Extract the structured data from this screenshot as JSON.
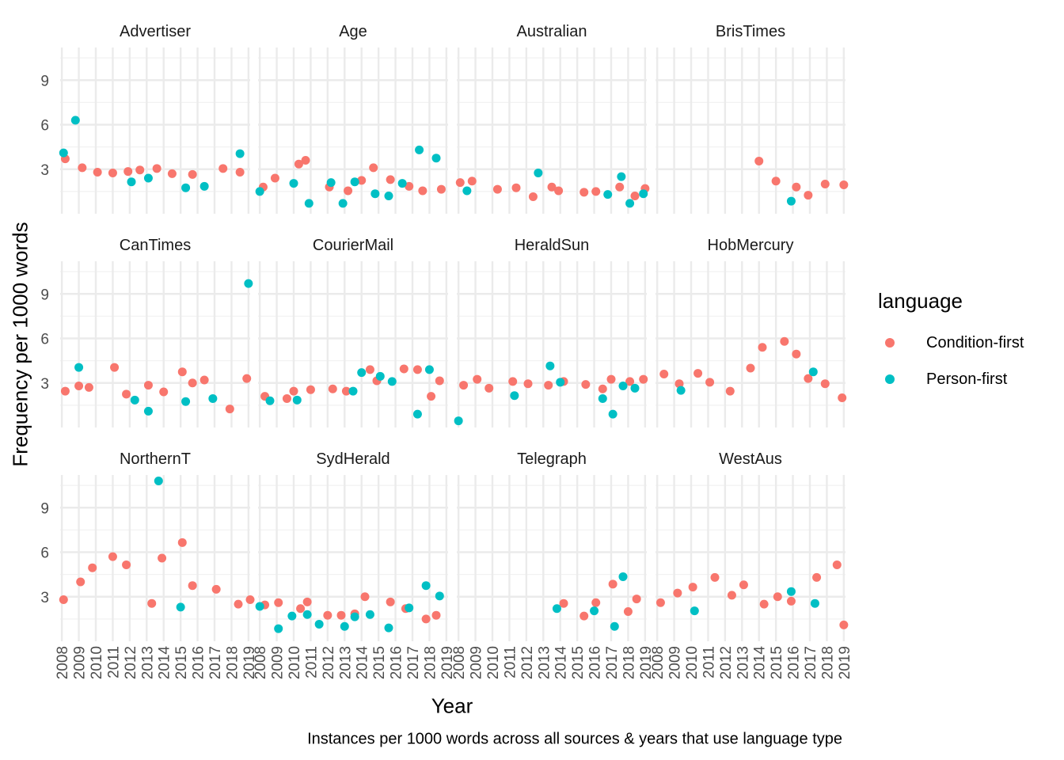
{
  "chart_data": {
    "type": "scatter",
    "xlabel": "Year",
    "ylabel": "Frequency per 1000 words",
    "caption": "Instances per 1000 words across all sources & years that use language type",
    "x_ticks": [
      "2008",
      "2009",
      "2010",
      "2011",
      "2012",
      "2013",
      "2014",
      "2015",
      "2016",
      "2017",
      "2018",
      "2019"
    ],
    "y_ticks": [
      3,
      6,
      9
    ],
    "xlim": [
      2007.9,
      2019.1
    ],
    "ylim": [
      0,
      11.2
    ],
    "grid": true,
    "legend": {
      "title": "language",
      "position": "right",
      "items": [
        {
          "label": "Condition-first",
          "color": "#F8766D"
        },
        {
          "label": "Person-first",
          "color": "#00BFC4"
        }
      ]
    },
    "facets": [
      {
        "title": "Advertiser",
        "condition_first": [
          [
            2008.2,
            3.7
          ],
          [
            2009.2,
            3.1
          ],
          [
            2010.1,
            2.8
          ],
          [
            2011.0,
            2.75
          ],
          [
            2011.9,
            2.85
          ],
          [
            2012.6,
            2.95
          ],
          [
            2013.6,
            3.05
          ],
          [
            2014.5,
            2.7
          ],
          [
            2015.7,
            2.65
          ],
          [
            2017.5,
            3.05
          ],
          [
            2018.5,
            2.8
          ]
        ],
        "person_first": [
          [
            2008.1,
            4.1
          ],
          [
            2008.8,
            6.3
          ],
          [
            2012.1,
            2.15
          ],
          [
            2013.1,
            2.4
          ],
          [
            2015.3,
            1.75
          ],
          [
            2016.4,
            1.85
          ],
          [
            2018.5,
            4.05
          ]
        ]
      },
      {
        "title": "Age",
        "condition_first": [
          [
            2008.2,
            1.8
          ],
          [
            2008.9,
            2.4
          ],
          [
            2010.3,
            3.35
          ],
          [
            2010.7,
            3.6
          ],
          [
            2012.1,
            1.8
          ],
          [
            2013.2,
            1.55
          ],
          [
            2014.0,
            2.25
          ],
          [
            2014.7,
            3.1
          ],
          [
            2015.7,
            2.3
          ],
          [
            2016.8,
            1.85
          ],
          [
            2017.6,
            1.55
          ],
          [
            2018.7,
            1.65
          ]
        ],
        "person_first": [
          [
            2008.0,
            1.5
          ],
          [
            2010.0,
            2.05
          ],
          [
            2010.9,
            0.7
          ],
          [
            2012.2,
            2.1
          ],
          [
            2012.9,
            0.7
          ],
          [
            2013.6,
            2.15
          ],
          [
            2014.8,
            1.35
          ],
          [
            2015.6,
            1.2
          ],
          [
            2016.4,
            2.05
          ],
          [
            2017.4,
            4.3
          ],
          [
            2018.4,
            3.75
          ]
        ]
      },
      {
        "title": "Australian",
        "condition_first": [
          [
            2008.1,
            2.1
          ],
          [
            2008.8,
            2.2
          ],
          [
            2010.3,
            1.65
          ],
          [
            2011.4,
            1.75
          ],
          [
            2012.4,
            1.15
          ],
          [
            2013.5,
            1.8
          ],
          [
            2013.9,
            1.55
          ],
          [
            2015.4,
            1.45
          ],
          [
            2016.1,
            1.5
          ],
          [
            2017.5,
            1.8
          ],
          [
            2018.4,
            1.2
          ],
          [
            2019.0,
            1.7
          ]
        ],
        "person_first": [
          [
            2008.5,
            1.55
          ],
          [
            2012.7,
            2.75
          ],
          [
            2016.8,
            1.3
          ],
          [
            2017.6,
            2.5
          ],
          [
            2018.1,
            0.7
          ],
          [
            2018.9,
            1.35
          ]
        ]
      },
      {
        "title": "BrisTimes",
        "condition_first": [
          [
            2014.0,
            3.55
          ],
          [
            2015.0,
            2.2
          ],
          [
            2016.2,
            1.8
          ],
          [
            2016.9,
            1.25
          ],
          [
            2017.9,
            2.0
          ],
          [
            2019.0,
            1.95
          ]
        ],
        "person_first": [
          [
            2015.9,
            0.85
          ]
        ]
      },
      {
        "title": "CanTimes",
        "condition_first": [
          [
            2008.2,
            2.45
          ],
          [
            2009.0,
            2.8
          ],
          [
            2009.6,
            2.7
          ],
          [
            2011.1,
            4.05
          ],
          [
            2011.8,
            2.25
          ],
          [
            2013.1,
            2.85
          ],
          [
            2014.0,
            2.4
          ],
          [
            2015.1,
            3.75
          ],
          [
            2015.7,
            3.0
          ],
          [
            2016.4,
            3.2
          ],
          [
            2017.9,
            1.25
          ],
          [
            2018.9,
            3.3
          ]
        ],
        "person_first": [
          [
            2009.0,
            4.05
          ],
          [
            2012.3,
            1.85
          ],
          [
            2013.1,
            1.1
          ],
          [
            2015.3,
            1.75
          ],
          [
            2016.9,
            1.95
          ],
          [
            2019.0,
            9.7
          ]
        ]
      },
      {
        "title": "CourierMail",
        "condition_first": [
          [
            2008.3,
            2.1
          ],
          [
            2009.6,
            1.95
          ],
          [
            2010.0,
            2.45
          ],
          [
            2011.0,
            2.55
          ],
          [
            2012.3,
            2.6
          ],
          [
            2013.1,
            2.45
          ],
          [
            2014.5,
            3.9
          ],
          [
            2014.9,
            3.15
          ],
          [
            2016.5,
            3.95
          ],
          [
            2017.3,
            3.9
          ],
          [
            2018.1,
            2.1
          ],
          [
            2018.6,
            3.15
          ]
        ],
        "person_first": [
          [
            2008.6,
            1.8
          ],
          [
            2010.2,
            1.85
          ],
          [
            2013.5,
            2.45
          ],
          [
            2014.0,
            3.7
          ],
          [
            2015.1,
            3.45
          ],
          [
            2015.8,
            3.1
          ],
          [
            2017.3,
            0.9
          ],
          [
            2018.0,
            3.9
          ]
        ]
      },
      {
        "title": "HeraldSun",
        "condition_first": [
          [
            2008.3,
            2.85
          ],
          [
            2009.1,
            3.25
          ],
          [
            2009.8,
            2.65
          ],
          [
            2011.2,
            3.1
          ],
          [
            2012.1,
            2.95
          ],
          [
            2013.3,
            2.85
          ],
          [
            2014.2,
            3.1
          ],
          [
            2015.5,
            2.9
          ],
          [
            2016.5,
            2.6
          ],
          [
            2017.0,
            3.25
          ],
          [
            2018.1,
            3.1
          ],
          [
            2018.9,
            3.25
          ]
        ],
        "person_first": [
          [
            2008.0,
            0.45
          ],
          [
            2011.3,
            2.15
          ],
          [
            2013.4,
            4.15
          ],
          [
            2014.0,
            3.05
          ],
          [
            2016.5,
            1.95
          ],
          [
            2017.1,
            0.9
          ],
          [
            2017.7,
            2.8
          ],
          [
            2018.4,
            2.65
          ]
        ]
      },
      {
        "title": "HobMercury",
        "condition_first": [
          [
            2008.4,
            3.6
          ],
          [
            2009.3,
            2.95
          ],
          [
            2010.4,
            3.65
          ],
          [
            2011.1,
            3.05
          ],
          [
            2012.3,
            2.45
          ],
          [
            2013.5,
            4.0
          ],
          [
            2014.2,
            5.4
          ],
          [
            2015.5,
            5.8
          ],
          [
            2016.2,
            4.95
          ],
          [
            2016.9,
            3.3
          ],
          [
            2017.9,
            2.95
          ],
          [
            2018.9,
            2.0
          ]
        ],
        "person_first": [
          [
            2009.4,
            2.5
          ],
          [
            2017.2,
            3.75
          ]
        ]
      },
      {
        "title": "NorthernT",
        "condition_first": [
          [
            2008.1,
            2.8
          ],
          [
            2009.1,
            4.0
          ],
          [
            2009.8,
            4.95
          ],
          [
            2011.0,
            5.7
          ],
          [
            2011.8,
            5.15
          ],
          [
            2013.3,
            2.55
          ],
          [
            2013.9,
            5.6
          ],
          [
            2015.1,
            6.65
          ],
          [
            2015.7,
            3.75
          ],
          [
            2017.1,
            3.5
          ],
          [
            2018.4,
            2.5
          ],
          [
            2019.1,
            2.8
          ]
        ],
        "person_first": [
          [
            2013.7,
            10.8
          ],
          [
            2015.0,
            2.3
          ]
        ]
      },
      {
        "title": "SydHerald",
        "condition_first": [
          [
            2008.3,
            2.45
          ],
          [
            2009.1,
            2.6
          ],
          [
            2010.4,
            2.2
          ],
          [
            2010.8,
            2.65
          ],
          [
            2012.0,
            1.75
          ],
          [
            2012.8,
            1.75
          ],
          [
            2013.6,
            1.85
          ],
          [
            2014.2,
            3.0
          ],
          [
            2015.7,
            2.65
          ],
          [
            2016.6,
            2.2
          ],
          [
            2017.8,
            1.5
          ],
          [
            2018.4,
            1.75
          ]
        ],
        "person_first": [
          [
            2008.0,
            2.35
          ],
          [
            2009.1,
            0.85
          ],
          [
            2009.9,
            1.7
          ],
          [
            2010.8,
            1.8
          ],
          [
            2011.5,
            1.15
          ],
          [
            2013.0,
            1.0
          ],
          [
            2013.6,
            1.65
          ],
          [
            2014.5,
            1.8
          ],
          [
            2015.6,
            0.9
          ],
          [
            2016.8,
            2.25
          ],
          [
            2017.8,
            3.75
          ],
          [
            2018.6,
            3.05
          ]
        ]
      },
      {
        "title": "Telegraph",
        "condition_first": [
          [
            2014.2,
            2.55
          ],
          [
            2015.4,
            1.7
          ],
          [
            2016.1,
            2.6
          ],
          [
            2017.1,
            3.85
          ],
          [
            2018.0,
            2.0
          ],
          [
            2018.5,
            2.85
          ]
        ],
        "person_first": [
          [
            2013.8,
            2.2
          ],
          [
            2016.0,
            2.05
          ],
          [
            2017.2,
            1.0
          ],
          [
            2017.7,
            4.35
          ]
        ]
      },
      {
        "title": "WestAus",
        "condition_first": [
          [
            2008.2,
            2.6
          ],
          [
            2009.2,
            3.25
          ],
          [
            2010.1,
            3.65
          ],
          [
            2011.4,
            4.3
          ],
          [
            2012.4,
            3.1
          ],
          [
            2013.1,
            3.8
          ],
          [
            2014.3,
            2.5
          ],
          [
            2015.1,
            3.0
          ],
          [
            2015.9,
            2.7
          ],
          [
            2017.4,
            4.3
          ],
          [
            2018.6,
            5.15
          ],
          [
            2019.0,
            1.1
          ]
        ],
        "person_first": [
          [
            2010.2,
            2.05
          ],
          [
            2015.9,
            3.35
          ],
          [
            2017.3,
            2.55
          ]
        ]
      }
    ]
  }
}
